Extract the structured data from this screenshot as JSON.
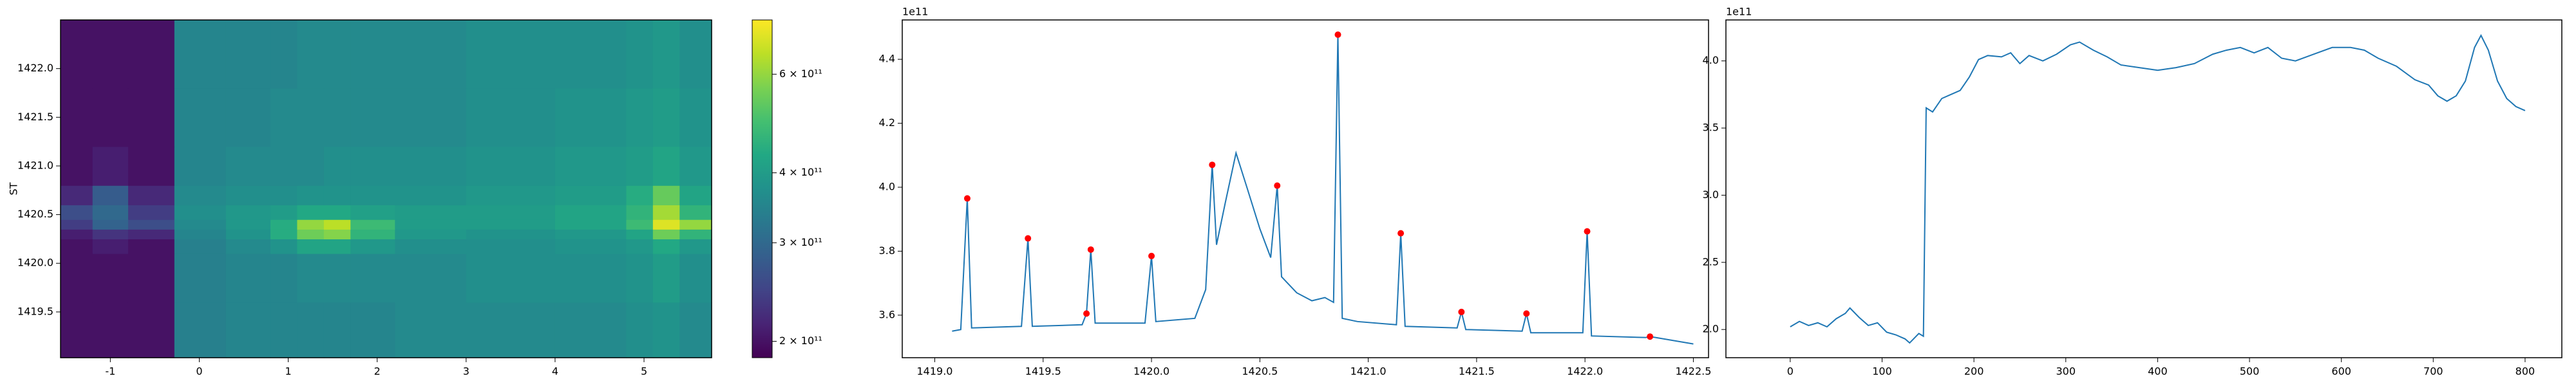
{
  "chart_data": [
    {
      "type": "heatmap",
      "ylabel": "ST",
      "colormap": "viridis",
      "clog": true,
      "xlim": [
        -1.56,
        5.76
      ],
      "ylim": [
        1419.03,
        1422.5
      ],
      "xticks": [
        -1,
        0,
        1,
        2,
        3,
        4,
        5
      ],
      "yticks": [
        1419.5,
        {
          "value": 1420,
          "label": "1420.0"
        },
        1420.5,
        {
          "value": 1421,
          "label": "1421.0"
        },
        1421.5,
        {
          "value": 1422,
          "label": "1422.0"
        }
      ],
      "clim": [
        187000000000.0,
        750000000000.0
      ],
      "cticks": [
        {
          "value": 200000000000.0,
          "label": "2 × 10¹¹"
        },
        {
          "value": 300000000000.0,
          "label": "3 × 10¹¹"
        },
        {
          "value": 400000000000.0,
          "label": "4 × 10¹¹"
        },
        {
          "value": 600000000000.0,
          "label": "6 × 10¹¹"
        }
      ],
      "x_edges": [
        -1.56,
        -1.2,
        -0.8,
        -0.28,
        0.3,
        0.8,
        1.1,
        1.4,
        1.7,
        2.2,
        3,
        4,
        4.8,
        5.1,
        5.4,
        5.76
      ],
      "y_edges": [
        1419.03,
        1419.6,
        1420.1,
        1420.25,
        1420.35,
        1420.45,
        1420.6,
        1420.8,
        1421.2,
        1421.8,
        1422.5
      ],
      "z": [
        [
          200000000000.0,
          200000000000.0,
          200000000000.0,
          340000000000.0,
          350000000000.0,
          350000000000.0,
          350000000000.0,
          350000000000.0,
          350000000000.0,
          360000000000.0,
          360000000000.0,
          360000000000.0,
          370000000000.0,
          380000000000.0,
          360000000000.0
        ],
        [
          200000000000.0,
          200000000000.0,
          200000000000.0,
          340000000000.0,
          350000000000.0,
          350000000000.0,
          360000000000.0,
          360000000000.0,
          360000000000.0,
          360000000000.0,
          370000000000.0,
          370000000000.0,
          380000000000.0,
          400000000000.0,
          370000000000.0
        ],
        [
          200000000000.0,
          210000000000.0,
          200000000000.0,
          340000000000.0,
          360000000000.0,
          380000000000.0,
          420000000000.0,
          420000000000.0,
          390000000000.0,
          370000000000.0,
          370000000000.0,
          380000000000.0,
          390000000000.0,
          430000000000.0,
          390000000000.0
        ],
        [
          210000000000.0,
          230000000000.0,
          220000000000.0,
          350000000000.0,
          380000000000.0,
          440000000000.0,
          550000000000.0,
          580000000000.0,
          460000000000.0,
          390000000000.0,
          380000000000.0,
          390000000000.0,
          420000000000.0,
          550000000000.0,
          460000000000.0
        ],
        [
          240000000000.0,
          290000000000.0,
          260000000000.0,
          360000000000.0,
          390000000000.0,
          440000000000.0,
          600000000000.0,
          650000000000.0,
          480000000000.0,
          400000000000.0,
          400000000000.0,
          420000000000.0,
          480000000000.0,
          700000000000.0,
          600000000000.0
        ],
        [
          260000000000.0,
          300000000000.0,
          240000000000.0,
          370000000000.0,
          390000000000.0,
          400000000000.0,
          430000000000.0,
          430000000000.0,
          410000000000.0,
          400000000000.0,
          400000000000.0,
          420000000000.0,
          460000000000.0,
          620000000000.0,
          460000000000.0
        ],
        [
          220000000000.0,
          280000000000.0,
          220000000000.0,
          360000000000.0,
          370000000000.0,
          370000000000.0,
          380000000000.0,
          380000000000.0,
          380000000000.0,
          380000000000.0,
          390000000000.0,
          400000000000.0,
          440000000000.0,
          540000000000.0,
          420000000000.0
        ],
        [
          200000000000.0,
          210000000000.0,
          200000000000.0,
          350000000000.0,
          360000000000.0,
          360000000000.0,
          360000000000.0,
          370000000000.0,
          370000000000.0,
          370000000000.0,
          380000000000.0,
          390000000000.0,
          400000000000.0,
          420000000000.0,
          390000000000.0
        ],
        [
          200000000000.0,
          200000000000.0,
          200000000000.0,
          350000000000.0,
          350000000000.0,
          360000000000.0,
          360000000000.0,
          360000000000.0,
          360000000000.0,
          360000000000.0,
          370000000000.0,
          380000000000.0,
          390000000000.0,
          400000000000.0,
          380000000000.0
        ],
        [
          200000000000.0,
          200000000000.0,
          200000000000.0,
          350000000000.0,
          350000000000.0,
          350000000000.0,
          360000000000.0,
          360000000000.0,
          360000000000.0,
          360000000000.0,
          370000000000.0,
          370000000000.0,
          380000000000.0,
          390000000000.0,
          370000000000.0
        ]
      ]
    },
    {
      "type": "line",
      "offset_label": "1e11",
      "xlim": [
        1418.85,
        1422.57
      ],
      "ylim": [
        346700000000.0,
        452300000000.0
      ],
      "xticks": [
        {
          "value": 1419,
          "label": "1419.0"
        },
        1419.5,
        {
          "value": 1420,
          "label": "1420.0"
        },
        1420.5,
        {
          "value": 1421,
          "label": "1421.0"
        },
        1421.5,
        {
          "value": 1422,
          "label": "1422.0"
        },
        1422.5
      ],
      "yticks": [
        {
          "value": 360000000000.0,
          "label": "3.6"
        },
        {
          "value": 380000000000.0,
          "label": "3.8"
        },
        {
          "value": 400000000000.0,
          "label": "4.0"
        },
        {
          "value": 420000000000.0,
          "label": "4.2"
        },
        {
          "value": 440000000000.0,
          "label": "4.4"
        }
      ],
      "series": [
        {
          "color": "#1f77b4",
          "style": "line",
          "x": [
            1419.08,
            1419.12,
            1419.15,
            1419.17,
            1419.4,
            1419.43,
            1419.45,
            1419.68,
            1419.7,
            1419.72,
            1419.74,
            1419.97,
            1420.0,
            1420.02,
            1420.2,
            1420.25,
            1420.28,
            1420.3,
            1420.34,
            1420.39,
            1420.44,
            1420.5,
            1420.55,
            1420.58,
            1420.6,
            1420.67,
            1420.74,
            1420.8,
            1420.84,
            1420.86,
            1420.88,
            1420.95,
            1421.13,
            1421.15,
            1421.17,
            1421.41,
            1421.43,
            1421.45,
            1421.71,
            1421.73,
            1421.75,
            1421.99,
            1422.01,
            1422.03,
            1422.28,
            1422.3,
            1422.5
          ],
          "values": [
            355000000000.0,
            355500000000.0,
            396500000000.0,
            356000000000.0,
            356500000000.0,
            384000000000.0,
            356500000000.0,
            357000000000.0,
            360500000000.0,
            380500000000.0,
            357500000000.0,
            357500000000.0,
            378500000000.0,
            358000000000.0,
            359000000000.0,
            368000000000.0,
            407000000000.0,
            382000000000.0,
            395000000000.0,
            410700000000.0,
            400000000000.0,
            387000000000.0,
            378000000000.0,
            400500000000.0,
            372000000000.0,
            367000000000.0,
            364500000000.0,
            365500000000.0,
            364000000000.0,
            447700000000.0,
            359000000000.0,
            358000000000.0,
            357000000000.0,
            385600000000.0,
            356500000000.0,
            356000000000.0,
            361000000000.0,
            355500000000.0,
            355000000000.0,
            360500000000.0,
            354500000000.0,
            354500000000.0,
            386200000000.0,
            353500000000.0,
            353000000000.0,
            353300000000.0,
            351000000000.0
          ]
        },
        {
          "color": "#ff0000",
          "style": "markers",
          "x": [
            1419.15,
            1419.43,
            1419.7,
            1419.72,
            1420.0,
            1420.28,
            1420.58,
            1420.86,
            1421.15,
            1421.43,
            1421.73,
            1422.01,
            1422.3
          ],
          "values": [
            396500000000.0,
            384000000000.0,
            360500000000.0,
            380500000000.0,
            378500000000.0,
            407000000000.0,
            400500000000.0,
            447700000000.0,
            385600000000.0,
            361000000000.0,
            360500000000.0,
            386200000000.0,
            353300000000.0
          ]
        }
      ]
    },
    {
      "type": "line",
      "offset_label": "1e11",
      "xlim": [
        -70,
        840
      ],
      "ylim": [
        179000000000.0,
        430500000000.0
      ],
      "xticks": [
        0,
        100,
        200,
        300,
        400,
        500,
        600,
        700,
        800
      ],
      "yticks": [
        {
          "value": 200000000000.0,
          "label": "2.0"
        },
        {
          "value": 250000000000.0,
          "label": "2.5"
        },
        {
          "value": 300000000000.0,
          "label": "3.0"
        },
        {
          "value": 350000000000.0,
          "label": "3.5"
        },
        {
          "value": 400000000000.0,
          "label": "4.0"
        }
      ],
      "series": [
        {
          "color": "#1f77b4",
          "style": "line",
          "x": [
            0,
            10,
            20,
            30,
            40,
            50,
            60,
            65,
            75,
            85,
            95,
            105,
            115,
            125,
            130,
            140,
            145,
            148,
            155,
            165,
            175,
            185,
            195,
            205,
            215,
            230,
            240,
            250,
            260,
            275,
            290,
            305,
            315,
            330,
            345,
            360,
            380,
            400,
            420,
            440,
            460,
            475,
            490,
            505,
            520,
            535,
            550,
            570,
            590,
            610,
            625,
            640,
            660,
            680,
            695,
            705,
            715,
            725,
            735,
            745,
            752,
            760,
            770,
            780,
            790,
            800
          ],
          "values": [
            202000000000.0,
            206000000000.0,
            203000000000.0,
            205000000000.0,
            202000000000.0,
            208000000000.0,
            212000000000.0,
            216000000000.0,
            209000000000.0,
            203000000000.0,
            205000000000.0,
            198000000000.0,
            196000000000.0,
            193000000000.0,
            190000000000.0,
            197000000000.0,
            195000000000.0,
            365000000000.0,
            362000000000.0,
            372000000000.0,
            375000000000.0,
            378000000000.0,
            388000000000.0,
            401000000000.0,
            404000000000.0,
            403000000000.0,
            406000000000.0,
            398000000000.0,
            404000000000.0,
            400000000000.0,
            405000000000.0,
            412000000000.0,
            414000000000.0,
            408000000000.0,
            403000000000.0,
            397000000000.0,
            395000000000.0,
            393000000000.0,
            395000000000.0,
            398000000000.0,
            405000000000.0,
            408000000000.0,
            410000000000.0,
            406000000000.0,
            410000000000.0,
            402000000000.0,
            400000000000.0,
            405000000000.0,
            410000000000.0,
            410000000000.0,
            408000000000.0,
            402000000000.0,
            396000000000.0,
            386000000000.0,
            382000000000.0,
            374000000000.0,
            370000000000.0,
            374000000000.0,
            385000000000.0,
            410000000000.0,
            419000000000.0,
            408000000000.0,
            385000000000.0,
            372000000000.0,
            366000000000.0,
            363000000000.0
          ]
        }
      ]
    }
  ]
}
